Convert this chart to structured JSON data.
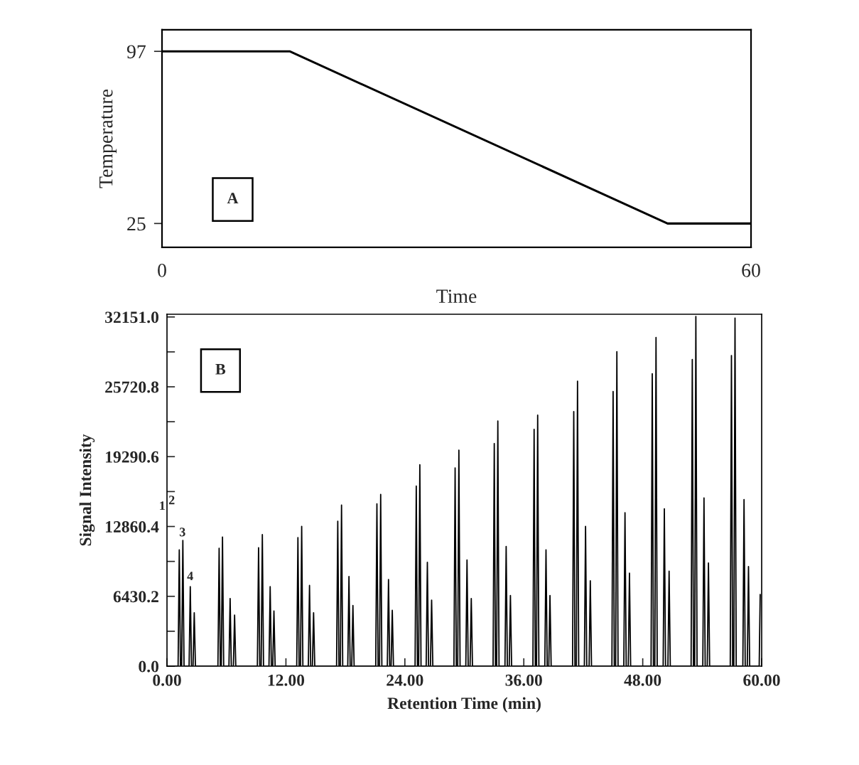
{
  "chart_data": [
    {
      "type": "line",
      "xlabel": "Time",
      "ylabel": "Temperature",
      "annotations": [
        "A"
      ],
      "series": [
        {
          "color": "#000000",
          "x": [
            0,
            13,
            51.5,
            60
          ],
          "values": [
            97,
            97,
            25,
            25
          ]
        }
      ],
      "xlim": [
        0,
        60
      ],
      "ylim": [
        15,
        106
      ],
      "xticks": [
        0,
        60
      ],
      "yticks": [
        25,
        97
      ],
      "grid": false,
      "legend": false
    },
    {
      "type": "line",
      "xlabel": "Retention Time (min)",
      "ylabel": "Signal Intensity",
      "annotations": [
        "B",
        "1",
        "2",
        "3",
        "4"
      ],
      "series": [
        {
          "color": "#000000",
          "x": [
            0,
            1.12,
            1.24,
            1.36,
            1.48,
            1.6,
            1.72,
            2.23,
            2.35,
            2.47,
            2.63,
            2.75,
            2.87,
            5.14,
            5.26,
            5.38,
            5.48,
            5.6,
            5.72,
            6.25,
            6.37,
            6.49,
            6.7,
            6.82,
            6.94,
            9.12,
            9.24,
            9.36,
            9.5,
            9.62,
            9.74,
            10.29,
            10.41,
            10.53,
            10.67,
            10.79,
            10.91,
            13.09,
            13.21,
            13.33,
            13.47,
            13.59,
            13.71,
            14.26,
            14.38,
            14.5,
            14.67,
            14.79,
            14.91,
            17.11,
            17.23,
            17.35,
            17.49,
            17.61,
            17.73,
            18.24,
            18.36,
            18.48,
            18.64,
            18.76,
            18.88,
            21.06,
            21.18,
            21.3,
            21.44,
            21.56,
            21.68,
            22.23,
            22.35,
            22.47,
            22.61,
            22.73,
            22.85,
            25.03,
            25.15,
            25.27,
            25.39,
            25.51,
            25.63,
            26.15,
            26.27,
            26.39,
            26.58,
            26.7,
            26.82,
            28.95,
            29.07,
            29.19,
            29.33,
            29.45,
            29.57,
            30.15,
            30.27,
            30.39,
            30.58,
            30.7,
            30.82,
            32.9,
            33.02,
            33.14,
            33.26,
            33.38,
            33.5,
            34.1,
            34.22,
            34.34,
            34.53,
            34.65,
            34.77,
            36.92,
            37.04,
            37.16,
            37.28,
            37.4,
            37.52,
            38.12,
            38.24,
            38.36,
            38.52,
            38.64,
            38.76,
            40.92,
            41.04,
            41.16,
            41.3,
            41.42,
            41.54,
            42.11,
            42.23,
            42.35,
            42.59,
            42.71,
            42.83,
            44.89,
            45.01,
            45.13,
            45.27,
            45.39,
            45.51,
            46.09,
            46.21,
            46.33,
            46.54,
            46.66,
            46.78,
            48.84,
            48.96,
            49.08,
            49.22,
            49.34,
            49.46,
            50.06,
            50.18,
            50.3,
            50.54,
            50.66,
            50.78,
            52.88,
            53.0,
            53.12,
            53.24,
            53.36,
            53.48,
            54.06,
            54.18,
            54.3,
            54.51,
            54.63,
            54.75,
            56.83,
            56.95,
            57.07,
            57.19,
            57.31,
            57.43,
            58.1,
            58.22,
            58.34,
            58.55,
            58.67,
            58.79,
            59.75,
            59.85
          ],
          "values": [
            0,
            0,
            10700,
            0,
            0,
            11570,
            0,
            0,
            7320,
            0,
            0,
            4920,
            0,
            0,
            10850,
            0,
            0,
            11890,
            0,
            0,
            6230,
            0,
            0,
            4700,
            0,
            0,
            10910,
            0,
            0,
            12110,
            0,
            0,
            7320,
            0,
            0,
            5080,
            0,
            0,
            11830,
            0,
            0,
            12870,
            0,
            0,
            7430,
            0,
            0,
            4920,
            0,
            0,
            13350,
            0,
            0,
            14830,
            0,
            0,
            8250,
            0,
            0,
            5580,
            0,
            0,
            14940,
            0,
            0,
            15810,
            0,
            0,
            7970,
            0,
            0,
            5140,
            0,
            0,
            16580,
            0,
            0,
            18540,
            0,
            0,
            9560,
            0,
            0,
            6080,
            0,
            0,
            18250,
            0,
            0,
            19890,
            0,
            0,
            9780,
            0,
            0,
            6230,
            0,
            0,
            20500,
            0,
            0,
            22570,
            0,
            0,
            11020,
            0,
            0,
            6510,
            0,
            0,
            21800,
            0,
            0,
            23110,
            0,
            0,
            10700,
            0,
            0,
            6510,
            0,
            0,
            23440,
            0,
            0,
            26230,
            0,
            0,
            12870,
            0,
            0,
            7860,
            0,
            0,
            25290,
            0,
            0,
            28950,
            0,
            0,
            14120,
            0,
            0,
            8560,
            0,
            0,
            26920,
            0,
            0,
            30260,
            0,
            0,
            14490,
            0,
            0,
            8740,
            0,
            0,
            28230,
            0,
            0,
            32200,
            0,
            0,
            15490,
            0,
            0,
            9500,
            0,
            0,
            28600,
            0,
            0,
            32040,
            0,
            0,
            15340,
            0,
            0,
            9170,
            0,
            0,
            6600
          ]
        }
      ],
      "xlim": [
        0,
        60
      ],
      "ylim": [
        0,
        32400
      ],
      "xticks": [
        {
          "value": 0,
          "label": "0.00"
        },
        {
          "value": 12,
          "label": "12.00"
        },
        {
          "value": 24,
          "label": "24.00"
        },
        {
          "value": 36,
          "label": "36.00"
        },
        {
          "value": 48,
          "label": "48.00"
        },
        {
          "value": 60,
          "label": "60.00"
        }
      ],
      "yticks": [
        {
          "value": 0,
          "label": "0.0"
        },
        {
          "value": 3215.1,
          "label": null
        },
        {
          "value": 6430.2,
          "label": "6430.2"
        },
        {
          "value": 9645.3,
          "label": null
        },
        {
          "value": 12860.4,
          "label": "12860.4"
        },
        {
          "value": 16075.5,
          "label": null
        },
        {
          "value": 19290.6,
          "label": "19290.6"
        },
        {
          "value": 22505.7,
          "label": null
        },
        {
          "value": 25720.8,
          "label": "25720.8"
        },
        {
          "value": 28935.9,
          "label": null
        },
        {
          "value": 32151.0,
          "label": "32151.0"
        }
      ],
      "grid": false,
      "legend": false
    }
  ]
}
